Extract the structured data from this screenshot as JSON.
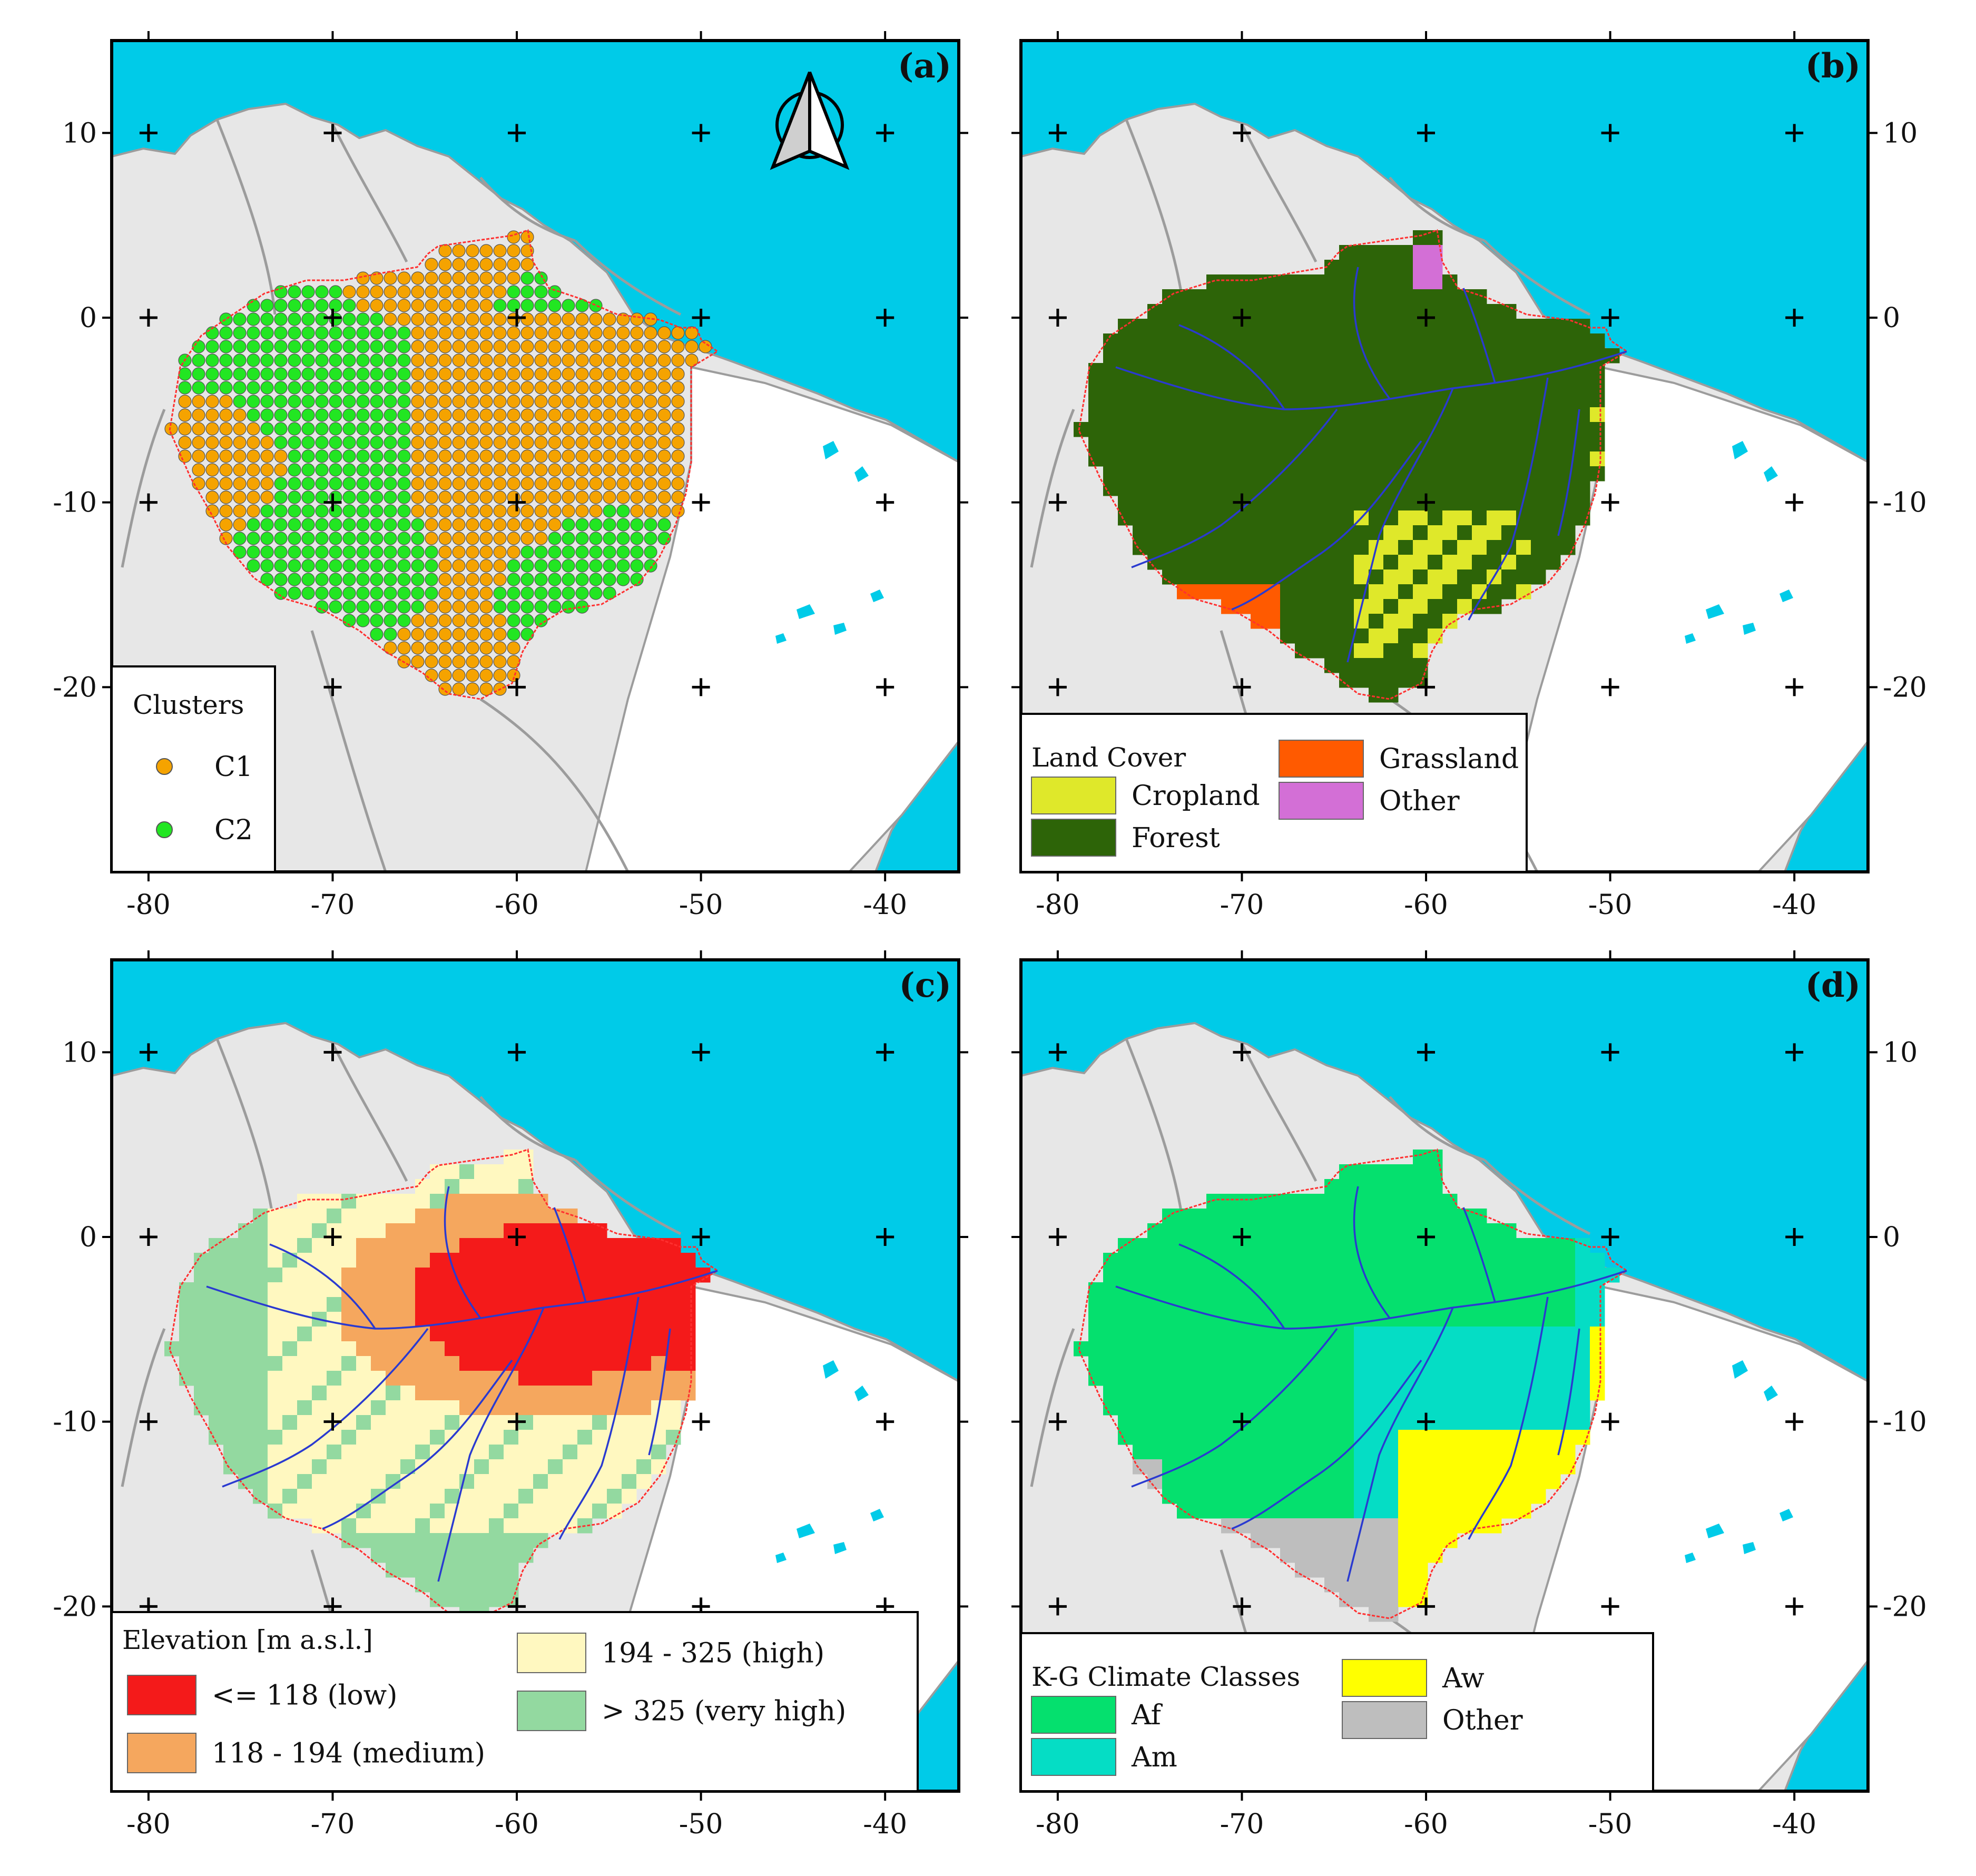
{
  "colors": {
    "ocean": "#00cbe8",
    "land": "#e7e7e7",
    "basin_land": "#ffffff",
    "border": "#9c9c9c",
    "basin_outline": "#ff3030",
    "river": "#2a3ad0",
    "graticule": "#000000"
  },
  "axes": {
    "x_ticks": [
      "-80",
      "-70",
      "-60",
      "-50",
      "-40"
    ],
    "y_ticks": [
      "10",
      "0",
      "-10",
      "-20"
    ],
    "lon_range": [
      -82,
      -36
    ],
    "lat_range": [
      -30,
      15
    ]
  },
  "panels": [
    {
      "id": "a",
      "label": "(a)",
      "legend": {
        "title": "Clusters",
        "items": [
          {
            "label": "C1",
            "color": "#f5a300",
            "shape": "circle"
          },
          {
            "label": "C2",
            "color": "#22e622",
            "shape": "circle"
          }
        ]
      },
      "has_north_arrow": true
    },
    {
      "id": "b",
      "label": "(b)",
      "legend": {
        "title": "Land Cover",
        "items": [
          {
            "label": "Cropland",
            "color": "#dfe82a"
          },
          {
            "label": "Forest",
            "color": "#2d6408"
          },
          {
            "label": "Grassland",
            "color": "#ff5a00"
          },
          {
            "label": "Other",
            "color": "#d36fd6"
          }
        ]
      }
    },
    {
      "id": "c",
      "label": "(c)",
      "legend": {
        "title": "Elevation [m a.s.l.]",
        "items": [
          {
            "label": "<= 118 (low)",
            "color": "#f41a1a"
          },
          {
            "label": "118 - 194 (medium)",
            "color": "#f5a75e"
          },
          {
            "label": "194 - 325 (high)",
            "color": "#fff8c0"
          },
          {
            "label": "> 325 (very high)",
            "color": "#93d9a0"
          }
        ]
      }
    },
    {
      "id": "d",
      "label": "(d)",
      "legend": {
        "title": "K-G Climate Classes",
        "items": [
          {
            "label": "Af",
            "color": "#05e06e"
          },
          {
            "label": "Am",
            "color": "#05ddc5"
          },
          {
            "label": "Aw",
            "color": "#ffff00"
          },
          {
            "label": "Other",
            "color": "#bebebe"
          }
        ]
      }
    }
  ]
}
